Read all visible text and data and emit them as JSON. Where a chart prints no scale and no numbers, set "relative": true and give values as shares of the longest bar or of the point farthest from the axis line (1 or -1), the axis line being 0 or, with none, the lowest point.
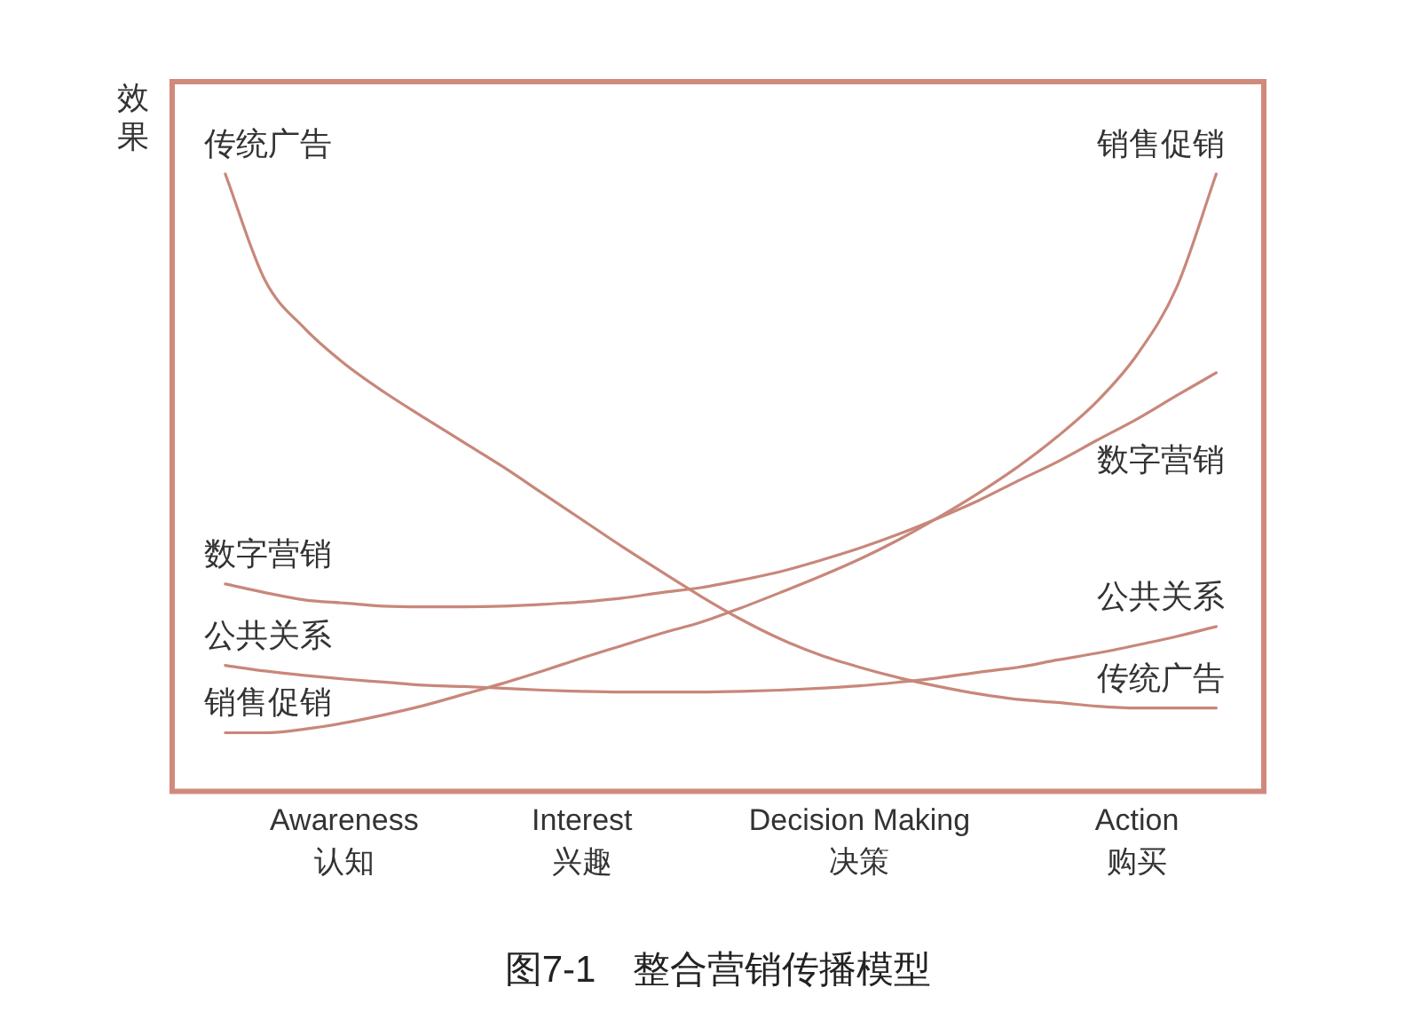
{
  "chart_data": {
    "type": "line",
    "title": "图7-1　整合营销传播模型",
    "ylabel": "效果",
    "relative": true,
    "categories": [
      null,
      null,
      null,
      "Awareness\n认知",
      null,
      null,
      null,
      null,
      null,
      "Interest\n兴趣",
      null,
      null,
      null,
      null,
      null,
      null,
      "Decision Making\n决策",
      null,
      null,
      null,
      null,
      null,
      null,
      "Action\n购买",
      null,
      null
    ],
    "series": [
      {
        "name": "传统广告",
        "color": "#c8877a",
        "values": [
          1,
          0.828,
          0.75,
          0.693,
          0.647,
          0.606,
          0.566,
          0.526,
          0.483,
          0.44,
          0.397,
          0.356,
          0.316,
          0.279,
          0.247,
          0.221,
          0.201,
          0.184,
          0.17,
          0.158,
          0.149,
          0.144,
          0.138,
          0.135,
          0.135,
          0.135
        ]
      },
      {
        "name": "数字营销",
        "color": "#c8877a",
        "values": [
          0.336,
          0.322,
          0.31,
          0.305,
          0.3,
          0.299,
          0.299,
          0.3,
          0.303,
          0.307,
          0.313,
          0.322,
          0.33,
          0.342,
          0.356,
          0.374,
          0.394,
          0.417,
          0.443,
          0.471,
          0.503,
          0.534,
          0.569,
          0.603,
          0.641,
          0.678
        ]
      },
      {
        "name": "公共关系",
        "color": "#c8877a",
        "values": [
          0.204,
          0.195,
          0.188,
          0.182,
          0.177,
          0.172,
          0.17,
          0.167,
          0.164,
          0.162,
          0.161,
          0.161,
          0.161,
          0.162,
          0.164,
          0.167,
          0.171,
          0.177,
          0.184,
          0.193,
          0.201,
          0.213,
          0.224,
          0.237,
          0.251,
          0.267
        ]
      },
      {
        "name": "销售促销",
        "color": "#c8877a",
        "values": [
          0.095,
          0.095,
          0.101,
          0.111,
          0.124,
          0.139,
          0.157,
          0.175,
          0.195,
          0.216,
          0.236,
          0.256,
          0.274,
          0.297,
          0.322,
          0.348,
          0.376,
          0.408,
          0.444,
          0.483,
          0.526,
          0.575,
          0.632,
          0.707,
          0.816,
          1
        ]
      }
    ]
  }
}
